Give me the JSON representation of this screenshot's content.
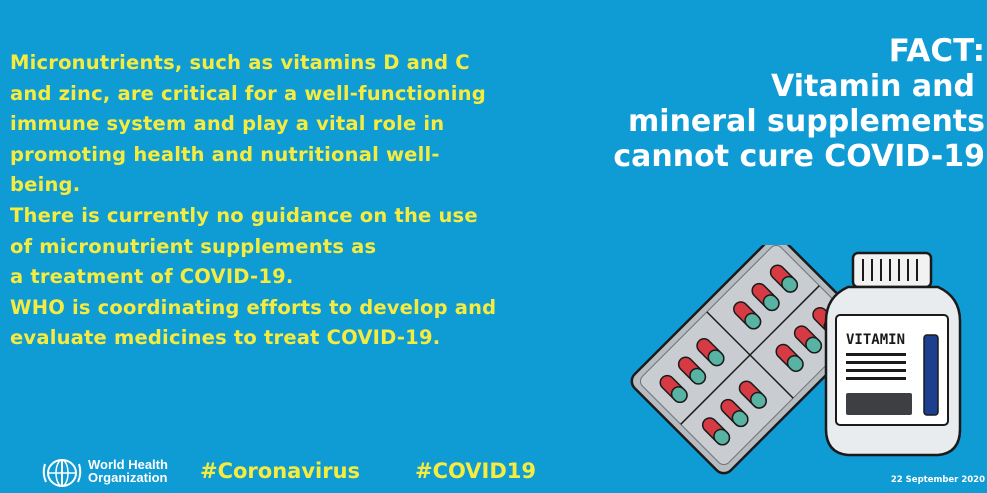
{
  "body": {
    "lines": [
      "Micronutrients, such as vitamins D and C",
      "and zinc, are critical for a well-functioning",
      "immune system and play a vital role in",
      "promoting health and nutritional well-",
      "being.",
      "There is currently no guidance on the use",
      "of micronutrient supplements as",
      "a treatment of COVID-19.",
      "WHO is coordinating efforts to develop and",
      "evaluate medicines to treat COVID-19."
    ]
  },
  "fact": {
    "lines": [
      "FACT:",
      "Vitamin and",
      "mineral supplements",
      "cannot cure COVID-19"
    ]
  },
  "footer": {
    "org_line1": "World Health",
    "org_line2": "Organization",
    "hashtag1": "#Coronavirus",
    "hashtag2": "#COVID19",
    "date": "22 September 2020"
  },
  "illustration": {
    "bottle_label": "VITAMIN",
    "icons": [
      "pill-blister-pack-icon",
      "vitamin-bottle-icon",
      "who-emblem-icon"
    ]
  },
  "colors": {
    "background": "#0f9bd4",
    "body_text": "#f6ec3f",
    "heading_text": "#ffffff",
    "pill_red": "#d63b44",
    "pill_teal": "#58b3a3"
  }
}
